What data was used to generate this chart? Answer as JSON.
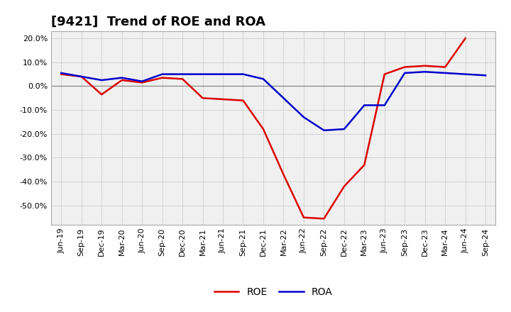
{
  "title": "[9421]  Trend of ROE and ROA",
  "x_labels": [
    "Jun-19",
    "Sep-19",
    "Dec-19",
    "Mar-20",
    "Jun-20",
    "Sep-20",
    "Dec-20",
    "Mar-21",
    "Jun-21",
    "Sep-21",
    "Dec-21",
    "Mar-22",
    "Jun-22",
    "Sep-22",
    "Dec-22",
    "Mar-23",
    "Jun-23",
    "Sep-23",
    "Dec-23",
    "Mar-24",
    "Jun-24",
    "Sep-24"
  ],
  "roe_values": [
    5.0,
    4.0,
    -3.5,
    2.5,
    1.5,
    3.5,
    3.0,
    -5.0,
    -5.5,
    -6.0,
    -18.0,
    -37.0,
    -55.0,
    -55.5,
    -42.0,
    -33.0,
    5.0,
    8.0,
    8.5,
    8.0,
    20.0,
    null
  ],
  "roa_values": [
    5.5,
    4.0,
    2.5,
    3.5,
    2.0,
    5.0,
    5.0,
    5.0,
    5.0,
    5.0,
    3.0,
    -5.0,
    -13.0,
    -18.5,
    -18.0,
    -8.0,
    -8.0,
    5.5,
    6.0,
    5.5,
    5.0,
    4.5
  ],
  "roe_color": "#dd0000",
  "roa_color": "#0000cc",
  "ylim": [
    -58,
    23
  ],
  "yticks": [
    -50.0,
    -40.0,
    -30.0,
    -20.0,
    -10.0,
    0.0,
    10.0,
    20.0
  ],
  "background_color": "#ffffff",
  "plot_area_color": "#f0f0f0",
  "grid_color": "#999999",
  "title_fontsize": 13,
  "axis_fontsize": 8,
  "legend_fontsize": 10,
  "line_width": 1.8
}
